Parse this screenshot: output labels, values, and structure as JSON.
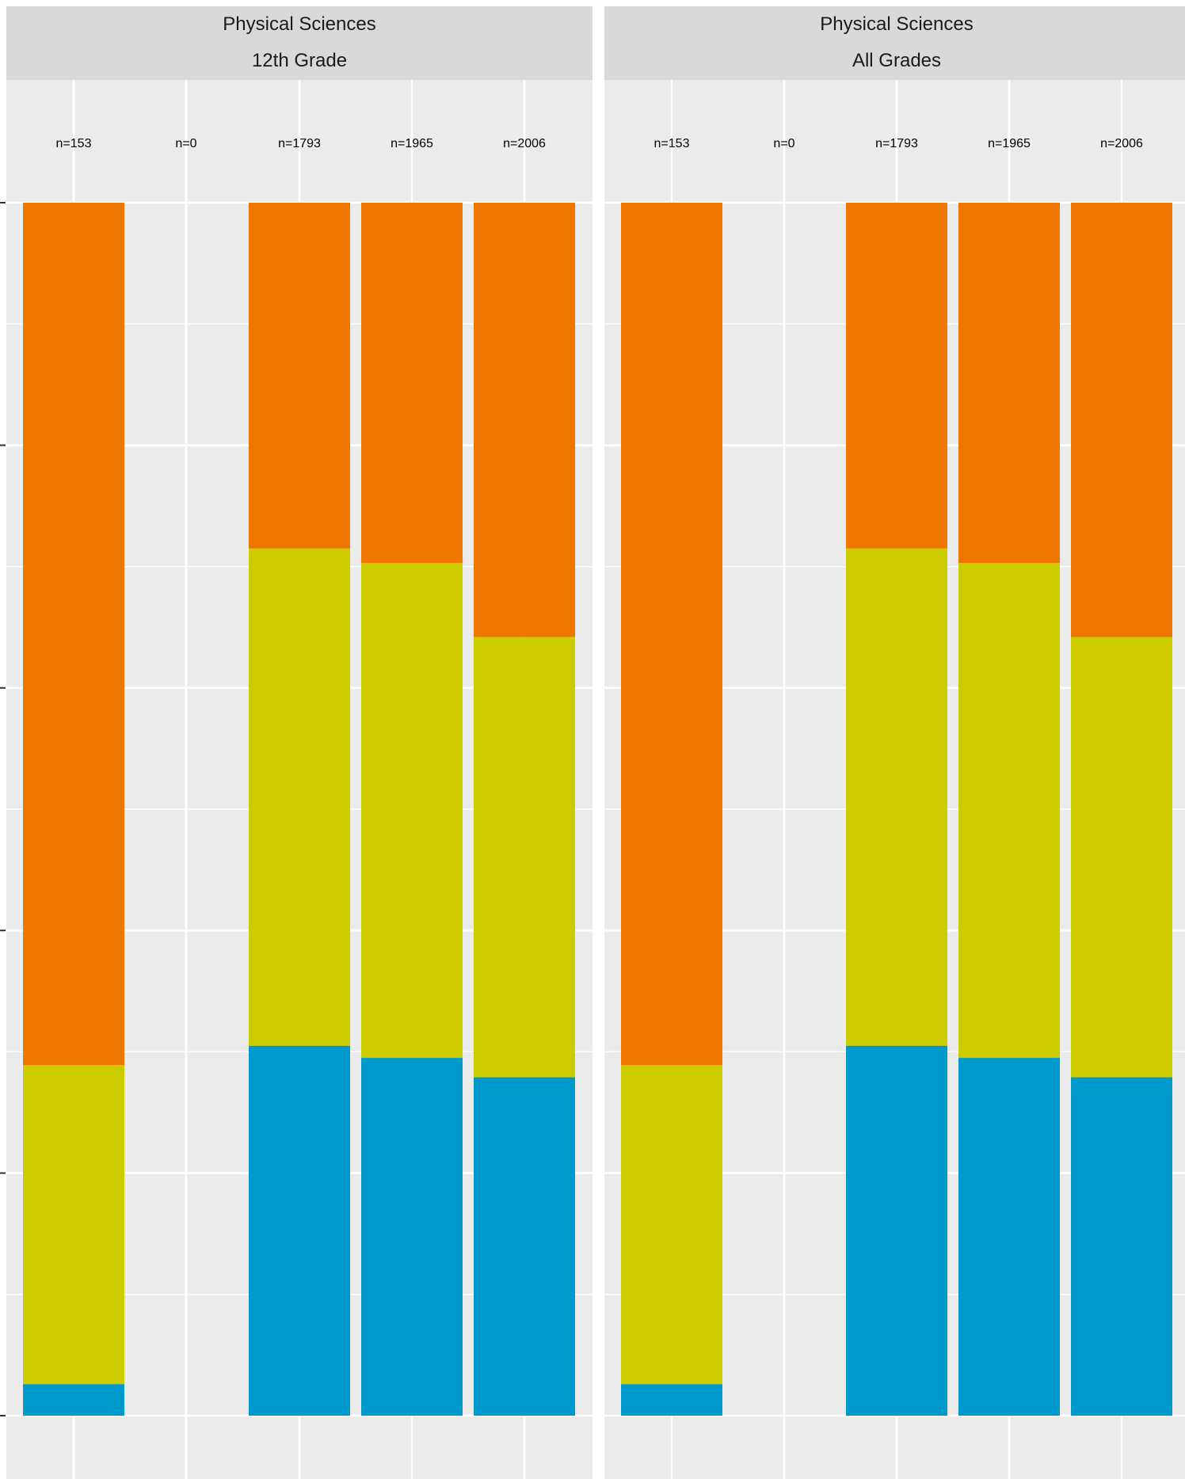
{
  "chart_data": [
    {
      "type": "bar",
      "stacked": "percent",
      "strip_title": "Physical Sciences",
      "strip_subtitle": "12th Grade",
      "counts": [
        "n=153",
        "n=0",
        "n=1793",
        "n=1965",
        "n=2006"
      ],
      "ylim": [
        0,
        1
      ],
      "grid": true,
      "series": [
        {
          "color": "#0099cc",
          "values": [
            0.026,
            0.0,
            0.305,
            0.295,
            0.279
          ]
        },
        {
          "color": "#cccc00",
          "values": [
            0.263,
            0.0,
            0.41,
            0.408,
            0.363
          ]
        },
        {
          "color": "#ee7700",
          "values": [
            0.711,
            0.0,
            0.285,
            0.297,
            0.358
          ]
        }
      ]
    },
    {
      "type": "bar",
      "stacked": "percent",
      "strip_title": "Physical Sciences",
      "strip_subtitle": "All Grades",
      "counts": [
        "n=153",
        "n=0",
        "n=1793",
        "n=1965",
        "n=2006"
      ],
      "ylim": [
        0,
        1
      ],
      "grid": true,
      "series": [
        {
          "color": "#0099cc",
          "values": [
            0.026,
            0.0,
            0.305,
            0.295,
            0.279
          ]
        },
        {
          "color": "#cccc00",
          "values": [
            0.263,
            0.0,
            0.41,
            0.408,
            0.363
          ]
        },
        {
          "color": "#ee7700",
          "values": [
            0.711,
            0.0,
            0.285,
            0.297,
            0.358
          ]
        }
      ]
    }
  ]
}
